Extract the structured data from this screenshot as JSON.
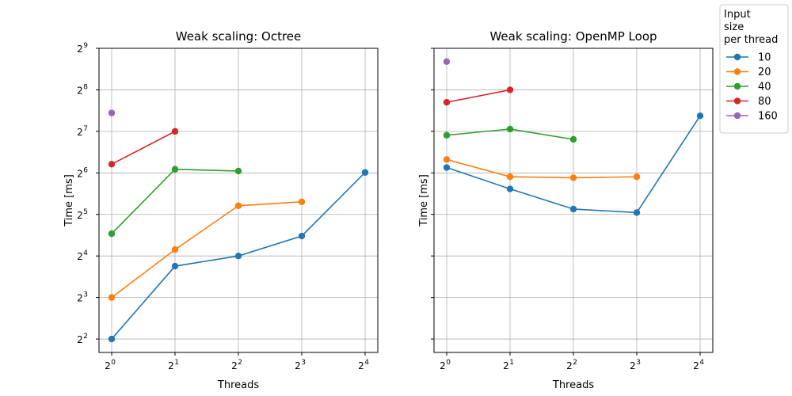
{
  "chart_data": [
    {
      "type": "line",
      "title": "Weak scaling: Octree",
      "xlabel": "Threads",
      "ylabel": "Time [ms]",
      "xscale": "log2",
      "yscale": "log2",
      "grid": true,
      "xticks": [
        {
          "base": "2",
          "exp": "0"
        },
        {
          "base": "2",
          "exp": "1"
        },
        {
          "base": "2",
          "exp": "2"
        },
        {
          "base": "2",
          "exp": "3"
        },
        {
          "base": "2",
          "exp": "4"
        }
      ],
      "yticks": [
        {
          "base": "2",
          "exp": "2"
        },
        {
          "base": "2",
          "exp": "3"
        },
        {
          "base": "2",
          "exp": "4"
        },
        {
          "base": "2",
          "exp": "5"
        },
        {
          "base": "2",
          "exp": "6"
        },
        {
          "base": "2",
          "exp": "7"
        },
        {
          "base": "2",
          "exp": "8"
        },
        {
          "base": "2",
          "exp": "9"
        }
      ],
      "series": [
        {
          "name": "10",
          "color": "#1f77b4",
          "x": [
            1,
            2,
            4,
            8,
            16
          ],
          "values": [
            4.0,
            13.5,
            16.0,
            22.3,
            64.5
          ]
        },
        {
          "name": "20",
          "color": "#ff7f0e",
          "x": [
            1,
            2,
            4,
            8
          ],
          "values": [
            8.0,
            17.8,
            37.0,
            39.5
          ]
        },
        {
          "name": "40",
          "color": "#2ca02c",
          "x": [
            1,
            2,
            4
          ],
          "values": [
            23.2,
            68.0,
            66.0
          ]
        },
        {
          "name": "80",
          "color": "#d62728",
          "x": [
            1,
            2
          ],
          "values": [
            74.0,
            128.0
          ]
        },
        {
          "name": "160",
          "color": "#9467bd",
          "x": [
            1
          ],
          "values": [
            174.0
          ]
        }
      ]
    },
    {
      "type": "line",
      "title": "Weak scaling: OpenMP Loop",
      "xlabel": "Threads",
      "ylabel": "Time [ms]",
      "xscale": "log2",
      "yscale": "log2",
      "grid": true,
      "xticks": [
        {
          "base": "2",
          "exp": "0"
        },
        {
          "base": "2",
          "exp": "1"
        },
        {
          "base": "2",
          "exp": "2"
        },
        {
          "base": "2",
          "exp": "3"
        },
        {
          "base": "2",
          "exp": "4"
        }
      ],
      "series": [
        {
          "name": "10",
          "color": "#1f77b4",
          "x": [
            1,
            2,
            4,
            8,
            16
          ],
          "values": [
            70.0,
            49.0,
            35.0,
            33.0,
            166.0
          ]
        },
        {
          "name": "20",
          "color": "#ff7f0e",
          "x": [
            1,
            2,
            4,
            8
          ],
          "values": [
            80.0,
            60.0,
            59.0,
            60.0
          ]
        },
        {
          "name": "40",
          "color": "#2ca02c",
          "x": [
            1,
            2,
            4
          ],
          "values": [
            120.0,
            133.0,
            112.0
          ]
        },
        {
          "name": "80",
          "color": "#d62728",
          "x": [
            1,
            2
          ],
          "values": [
            208.0,
            256.0
          ]
        },
        {
          "name": "160",
          "color": "#9467bd",
          "x": [
            1
          ],
          "values": [
            410.0
          ]
        }
      ]
    }
  ],
  "legend": {
    "title": "Input\nsize\nper thread",
    "placement": "upper-right, outside",
    "entries": [
      {
        "label": "10",
        "color": "#1f77b4"
      },
      {
        "label": "20",
        "color": "#ff7f0e"
      },
      {
        "label": "40",
        "color": "#2ca02c"
      },
      {
        "label": "80",
        "color": "#d62728"
      },
      {
        "label": "160",
        "color": "#9467bd"
      }
    ]
  }
}
